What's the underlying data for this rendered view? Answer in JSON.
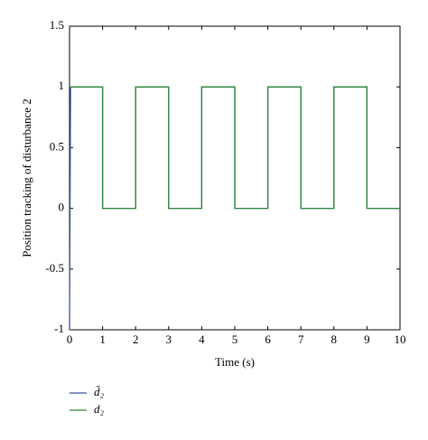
{
  "chart_data": {
    "type": "line",
    "xlabel": "Time (s)",
    "ylabel": "Position tracking of disturbance 2",
    "xlim": [
      0,
      10
    ],
    "xticks": [
      0,
      1,
      2,
      3,
      4,
      5,
      6,
      7,
      8,
      9,
      10
    ],
    "ylim": [
      -1,
      1.5
    ],
    "yticks": [
      -1,
      -0.5,
      0,
      0.5,
      1,
      1.5
    ],
    "series": [
      {
        "name": "d̃₂",
        "color": "#3b4fa0",
        "x": [
          0,
          0.03,
          1,
          1,
          2,
          2,
          3,
          3,
          4,
          4,
          5,
          5,
          6,
          6,
          7,
          7,
          8,
          8,
          9,
          9,
          10
        ],
        "values": [
          -1,
          1,
          1,
          0,
          0,
          1,
          1,
          0,
          0,
          1,
          1,
          0,
          0,
          1,
          1,
          0,
          0,
          1,
          1,
          0,
          0
        ]
      },
      {
        "name": "d₂",
        "color": "#2e8b3a",
        "x": [
          0,
          1,
          1,
          2,
          2,
          3,
          3,
          4,
          4,
          5,
          5,
          6,
          6,
          7,
          7,
          8,
          8,
          9,
          9,
          10
        ],
        "values": [
          1,
          1,
          0,
          0,
          1,
          1,
          0,
          0,
          1,
          1,
          0,
          0,
          1,
          1,
          0,
          0,
          1,
          1,
          0,
          0
        ]
      }
    ]
  }
}
